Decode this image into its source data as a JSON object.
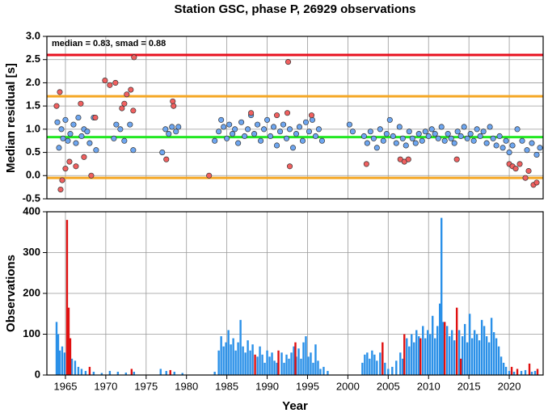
{
  "chart_data": [
    {
      "type": "scatter",
      "title": "Station GSC, phase P, 26929 observations",
      "annotation": "median = 0.83, smad = 0.88",
      "y_label": "Median residual [s]",
      "xlim": [
        1962.7,
        2024.2
      ],
      "ylim": [
        -0.5,
        3.0
      ],
      "yticks": [
        -0.5,
        {
          "value": 0,
          "label": "0.0"
        },
        0.5,
        {
          "value": 1,
          "label": "1.0"
        },
        1.5,
        {
          "value": 2,
          "label": "2.0"
        },
        2.5,
        {
          "value": 3,
          "label": "3.0"
        }
      ],
      "grid": true,
      "reference_lines": [
        {
          "value": 2.6,
          "color": "#e8101e"
        },
        {
          "value": 1.71,
          "color": "#f5a623"
        },
        {
          "value": -0.05,
          "color": "#f5a623"
        },
        {
          "value": 0.83,
          "color": "#22e822"
        }
      ],
      "series": [
        {
          "color": "#6ea6f0",
          "x": [
            1964.0,
            1964.2,
            1964.5,
            1964.7,
            1965.0,
            1965.3,
            1965.6,
            1966.0,
            1966.3,
            1966.6,
            1967.0,
            1967.3,
            1967.7,
            1968.0,
            1968.5,
            1968.8,
            1971.0,
            1971.3,
            1971.8,
            1972.3,
            1973.0,
            1973.4,
            1977.0,
            1977.4,
            1977.8,
            1978.2,
            1978.7,
            1979.0,
            1983.5,
            1984.0,
            1984.3,
            1984.6,
            1985.0,
            1985.3,
            1985.7,
            1986.0,
            1986.4,
            1986.8,
            1987.2,
            1987.6,
            1988.0,
            1988.4,
            1988.8,
            1989.2,
            1989.6,
            1990.0,
            1990.4,
            1990.8,
            1991.2,
            1991.6,
            1992.0,
            1992.4,
            1992.8,
            1993.2,
            1993.6,
            1994.0,
            1994.4,
            1994.8,
            1995.2,
            1995.6,
            1996.0,
            1996.4,
            1996.8,
            2000.2,
            2000.6,
            2002.0,
            2002.4,
            2002.8,
            2003.2,
            2003.6,
            2004.0,
            2004.4,
            2004.8,
            2005.2,
            2005.6,
            2006.0,
            2006.4,
            2006.8,
            2007.2,
            2007.6,
            2008.0,
            2008.4,
            2008.8,
            2009.2,
            2009.6,
            2010.0,
            2010.4,
            2010.8,
            2011.2,
            2011.6,
            2012.0,
            2012.4,
            2012.8,
            2013.2,
            2013.6,
            2014.0,
            2014.4,
            2014.8,
            2015.2,
            2015.6,
            2016.0,
            2016.4,
            2016.8,
            2017.2,
            2017.6,
            2018.0,
            2018.4,
            2018.8,
            2019.2,
            2019.6,
            2020.0,
            2020.4,
            2021.0,
            2021.6,
            2022.2,
            2022.8,
            2023.4,
            2023.8
          ],
          "values": [
            1.15,
            0.6,
            1.0,
            0.8,
            1.2,
            0.75,
            0.9,
            1.1,
            0.7,
            1.25,
            0.85,
            1.0,
            0.95,
            0.7,
            1.25,
            0.55,
            0.8,
            1.1,
            1.0,
            0.75,
            1.1,
            0.55,
            0.5,
            1.0,
            0.9,
            1.05,
            0.95,
            1.05,
            0.75,
            0.95,
            1.2,
            1.05,
            0.8,
            1.1,
            0.9,
            1.0,
            0.7,
            1.15,
            0.85,
            1.0,
            1.3,
            0.9,
            1.1,
            0.75,
            1.0,
            1.2,
            0.85,
            1.05,
            0.65,
            0.95,
            1.1,
            0.8,
            1.0,
            0.6,
            0.9,
            1.05,
            0.75,
            1.15,
            0.95,
            1.2,
            0.85,
            1.0,
            0.75,
            1.1,
            0.95,
            0.85,
            0.7,
            0.95,
            0.8,
            0.6,
            1.0,
            0.75,
            0.9,
            1.2,
            0.85,
            0.7,
            1.05,
            0.8,
            0.65,
            0.95,
            0.8,
            0.7,
            0.9,
            0.75,
            0.95,
            0.85,
            1.0,
            0.9,
            0.8,
            1.05,
            0.75,
            0.9,
            0.8,
            0.7,
            0.95,
            0.85,
            1.05,
            0.8,
            0.9,
            0.75,
            1.0,
            0.85,
            0.95,
            0.7,
            1.05,
            0.8,
            0.65,
            0.85,
            0.6,
            0.75,
            0.5,
            0.65,
            1.0,
            0.75,
            0.55,
            0.7,
            0.45,
            0.6
          ]
        },
        {
          "color": "#f06060",
          "x": [
            1963.9,
            1964.3,
            1964.4,
            1964.6,
            1965.0,
            1965.5,
            1966.3,
            1966.9,
            1967.3,
            1968.2,
            1968.7,
            1969.9,
            1970.5,
            1971.2,
            1972.0,
            1972.3,
            1972.6,
            1973.1,
            1973.4,
            1973.5,
            1977.5,
            1978.3,
            1978.4,
            1982.8,
            1988.0,
            1991.2,
            1992.5,
            1992.6,
            1992.8,
            1995.5,
            2002.3,
            2006.5,
            2007.0,
            2007.5,
            2013.5,
            2020.0,
            2020.4,
            2020.8,
            2021.3,
            2022.0,
            2022.4,
            2023.0,
            2023.4
          ],
          "values": [
            1.5,
            1.8,
            -0.3,
            -0.1,
            0.15,
            0.3,
            0.2,
            1.55,
            0.4,
            0.0,
            1.25,
            2.05,
            1.95,
            2.0,
            1.45,
            1.55,
            1.75,
            1.85,
            1.4,
            2.55,
            0.35,
            1.6,
            1.5,
            0.0,
            1.35,
            1.3,
            1.35,
            2.45,
            0.2,
            1.3,
            0.25,
            0.35,
            0.3,
            0.35,
            0.35,
            0.25,
            0.2,
            0.15,
            0.25,
            -0.05,
            0.1,
            -0.2,
            -0.15
          ]
        }
      ]
    },
    {
      "type": "bar",
      "x_label": "Year",
      "y_label": "Observations",
      "xlim": [
        1962.7,
        2024.2
      ],
      "ylim": [
        0,
        400
      ],
      "yticks": [
        0,
        100,
        200,
        300,
        400
      ],
      "xticks": [
        1965,
        1970,
        1975,
        1980,
        1985,
        1990,
        1995,
        2000,
        2005,
        2010,
        2015,
        2020
      ],
      "grid": true,
      "series": [
        {
          "color": "#2a90e8",
          "x": [
            1963.9,
            1964.1,
            1964.3,
            1964.6,
            1964.9,
            1965.8,
            1966.2,
            1966.6,
            1967.0,
            1967.5,
            1968.5,
            1969.5,
            1970.5,
            1971.5,
            1972.5,
            1973.5,
            1976.8,
            1977.5,
            1978.5,
            1979.5,
            1983.5,
            1984.0,
            1984.3,
            1984.6,
            1984.9,
            1985.2,
            1985.5,
            1985.8,
            1986.1,
            1986.4,
            1986.7,
            1987.0,
            1987.3,
            1987.6,
            1987.9,
            1988.2,
            1988.8,
            1989.1,
            1989.4,
            1989.7,
            1990.0,
            1990.3,
            1990.6,
            1990.9,
            1991.2,
            1991.8,
            1992.1,
            1992.4,
            1992.7,
            1993.0,
            1993.3,
            1993.6,
            1993.9,
            1994.2,
            1994.5,
            1994.8,
            1995.1,
            1995.4,
            1995.7,
            1996.0,
            1996.3,
            1996.6,
            1997.0,
            1997.5,
            2001.8,
            2002.1,
            2002.4,
            2002.7,
            2003.0,
            2003.3,
            2003.6,
            2004.0,
            2004.6,
            2005.0,
            2005.5,
            2006.0,
            2006.5,
            2006.8,
            2007.3,
            2007.6,
            2007.9,
            2008.2,
            2008.5,
            2008.8,
            2009.3,
            2009.6,
            2009.9,
            2010.2,
            2010.5,
            2010.8,
            2011.1,
            2011.4,
            2011.6,
            2011.8,
            2012.3,
            2012.6,
            2012.9,
            2013.2,
            2013.8,
            2014.2,
            2014.5,
            2014.8,
            2015.1,
            2015.4,
            2015.7,
            2016.0,
            2016.3,
            2016.6,
            2016.9,
            2017.2,
            2017.5,
            2017.8,
            2018.1,
            2018.4,
            2018.7,
            2019.0,
            2019.3,
            2019.6,
            2020.0,
            2020.6,
            2021.5,
            2022.0,
            2022.8,
            2023.2
          ],
          "values": [
            130,
            100,
            60,
            70,
            55,
            40,
            35,
            20,
            15,
            10,
            8,
            5,
            10,
            8,
            6,
            8,
            15,
            10,
            8,
            5,
            8,
            60,
            95,
            70,
            80,
            110,
            75,
            90,
            60,
            80,
            135,
            70,
            55,
            85,
            60,
            75,
            45,
            70,
            50,
            30,
            60,
            45,
            55,
            35,
            30,
            55,
            30,
            50,
            40,
            55,
            70,
            45,
            65,
            40,
            80,
            95,
            45,
            55,
            30,
            75,
            35,
            15,
            20,
            10,
            30,
            50,
            55,
            40,
            60,
            50,
            35,
            55,
            30,
            15,
            20,
            35,
            55,
            40,
            90,
            70,
            100,
            80,
            110,
            95,
            120,
            90,
            110,
            100,
            145,
            90,
            120,
            175,
            385,
            130,
            120,
            95,
            110,
            85,
            110,
            95,
            125,
            80,
            150,
            90,
            110,
            100,
            85,
            135,
            120,
            95,
            80,
            140,
            105,
            90,
            70,
            45,
            30,
            20,
            10,
            8,
            10,
            12,
            8,
            10
          ]
        },
        {
          "color": "#e01010",
          "x": [
            1965.2,
            1965.4,
            1965.6,
            1968.0,
            1973.2,
            1978.0,
            1988.5,
            1991.4,
            1993.5,
            2004.3,
            2007.0,
            2009.0,
            2012.0,
            2013.5,
            2014.0,
            2020.3,
            2021.0,
            2022.5,
            2023.5
          ],
          "values": [
            380,
            165,
            90,
            20,
            15,
            12,
            50,
            60,
            80,
            80,
            100,
            90,
            130,
            165,
            40,
            20,
            15,
            28,
            15
          ]
        }
      ]
    }
  ]
}
